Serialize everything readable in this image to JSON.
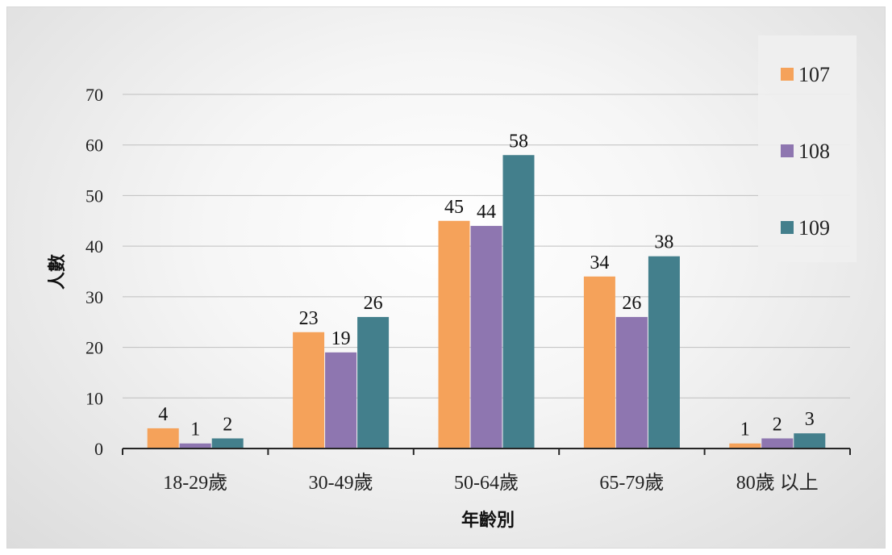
{
  "chart_data": {
    "type": "bar",
    "title": "",
    "xlabel": "年齡別",
    "ylabel": "人數",
    "categories": [
      "18-29歲",
      "30-49歲",
      "50-64歲",
      "65-79歲",
      "80歲 以上"
    ],
    "series": [
      {
        "name": "107",
        "color": "#F5A25A",
        "values": [
          4,
          23,
          45,
          34,
          1
        ]
      },
      {
        "name": "108",
        "color": "#8E76B0",
        "values": [
          1,
          19,
          44,
          26,
          2
        ]
      },
      {
        "name": "109",
        "color": "#437F8C",
        "values": [
          2,
          26,
          58,
          38,
          3
        ]
      }
    ],
    "ylim": [
      0,
      70
    ],
    "yticks": [
      0,
      10,
      20,
      30,
      40,
      50,
      60,
      70
    ],
    "grid": true,
    "legend_position": "top-right",
    "data_labels": true
  }
}
